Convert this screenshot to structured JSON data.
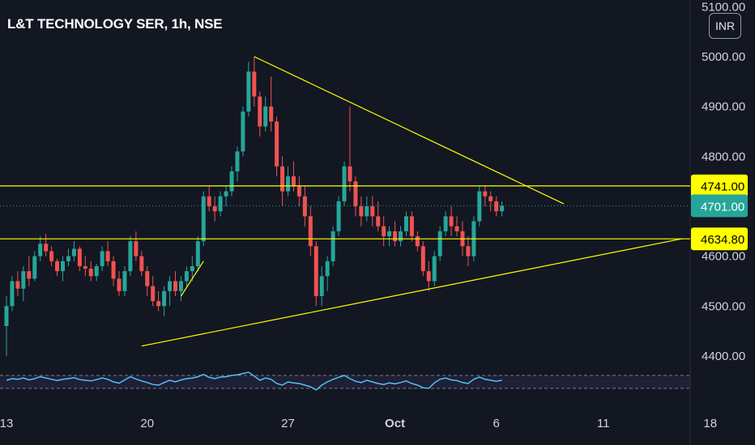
{
  "header": {
    "symbol_title": "L&T TECHNOLOGY SER, 1h, NSE",
    "currency_button": "INR"
  },
  "colors": {
    "background": "#131722",
    "up": "#26a69a",
    "down": "#ef5350",
    "drawing": "#ffff00",
    "rsi": "#4fc3f7",
    "text": "#d1d4dc"
  },
  "chart_data": {
    "type": "candlestick",
    "title": "L&T TECHNOLOGY SER, 1h, NSE",
    "currency": "INR",
    "ylim": [
      4400,
      5100
    ],
    "y_ticks": [
      4400,
      4500,
      4600,
      4700,
      4800,
      4900,
      5000,
      5100
    ],
    "y_tick_labels": [
      "4400.00",
      "4500.00",
      "4600.00",
      "4700.00",
      "4800.00",
      "4900.00",
      "5000.00",
      "5100.00"
    ],
    "x_ticks": [
      "13",
      "20",
      "27",
      "Oct",
      "6",
      "11",
      "18"
    ],
    "x_tick_positions": [
      0,
      25,
      50,
      69,
      87,
      106,
      125
    ],
    "last_price": "4701.00",
    "price_labels": [
      "4741.00",
      "4634.80"
    ],
    "horizontal_levels": [
      4741,
      4634.8
    ],
    "trendlines": [
      {
        "from": [
          44,
          5000
        ],
        "to": [
          99,
          4705
        ]
      },
      {
        "from": [
          24,
          4420
        ],
        "to": [
          120,
          4635
        ]
      },
      {
        "from": [
          31,
          4520
        ],
        "to": [
          35,
          4590
        ]
      }
    ],
    "candles": [
      [
        4460,
        4520,
        4400,
        4500
      ],
      [
        4500,
        4560,
        4490,
        4550
      ],
      [
        4550,
        4570,
        4520,
        4535
      ],
      [
        4535,
        4580,
        4510,
        4570
      ],
      [
        4570,
        4600,
        4540,
        4555
      ],
      [
        4555,
        4610,
        4550,
        4600
      ],
      [
        4600,
        4640,
        4590,
        4625
      ],
      [
        4625,
        4645,
        4600,
        4610
      ],
      [
        4610,
        4620,
        4580,
        4590
      ],
      [
        4590,
        4595,
        4560,
        4570
      ],
      [
        4570,
        4600,
        4550,
        4590
      ],
      [
        4590,
        4615,
        4580,
        4600
      ],
      [
        4600,
        4630,
        4590,
        4615
      ],
      [
        4615,
        4620,
        4570,
        4580
      ],
      [
        4580,
        4600,
        4560,
        4575
      ],
      [
        4575,
        4590,
        4550,
        4560
      ],
      [
        4560,
        4585,
        4550,
        4580
      ],
      [
        4580,
        4620,
        4570,
        4610
      ],
      [
        4610,
        4630,
        4580,
        4590
      ],
      [
        4590,
        4600,
        4540,
        4555
      ],
      [
        4555,
        4570,
        4520,
        4530
      ],
      [
        4530,
        4580,
        4520,
        4570
      ],
      [
        4570,
        4640,
        4560,
        4630
      ],
      [
        4630,
        4650,
        4590,
        4600
      ],
      [
        4600,
        4610,
        4560,
        4570
      ],
      [
        4570,
        4580,
        4520,
        4540
      ],
      [
        4540,
        4560,
        4500,
        4510
      ],
      [
        4510,
        4530,
        4490,
        4500
      ],
      [
        4500,
        4540,
        4480,
        4530
      ],
      [
        4530,
        4560,
        4500,
        4550
      ],
      [
        4550,
        4570,
        4520,
        4530
      ],
      [
        4530,
        4560,
        4510,
        4550
      ],
      [
        4550,
        4580,
        4540,
        4570
      ],
      [
        4570,
        4600,
        4550,
        4580
      ],
      [
        4580,
        4640,
        4570,
        4630
      ],
      [
        4630,
        4730,
        4620,
        4720
      ],
      [
        4720,
        4740,
        4690,
        4700
      ],
      [
        4700,
        4720,
        4670,
        4690
      ],
      [
        4690,
        4730,
        4680,
        4720
      ],
      [
        4720,
        4740,
        4700,
        4730
      ],
      [
        4730,
        4780,
        4720,
        4770
      ],
      [
        4770,
        4820,
        4750,
        4810
      ],
      [
        4810,
        4900,
        4800,
        4890
      ],
      [
        4890,
        4990,
        4880,
        4970
      ],
      [
        4970,
        5000,
        4900,
        4920
      ],
      [
        4920,
        4930,
        4840,
        4860
      ],
      [
        4860,
        4920,
        4850,
        4900
      ],
      [
        4900,
        4960,
        4850,
        4870
      ],
      [
        4870,
        4880,
        4760,
        4780
      ],
      [
        4780,
        4800,
        4700,
        4730
      ],
      [
        4730,
        4780,
        4720,
        4760
      ],
      [
        4760,
        4790,
        4730,
        4740
      ],
      [
        4740,
        4760,
        4700,
        4720
      ],
      [
        4720,
        4740,
        4660,
        4680
      ],
      [
        4680,
        4700,
        4600,
        4620
      ],
      [
        4620,
        4630,
        4500,
        4520
      ],
      [
        4520,
        4580,
        4500,
        4560
      ],
      [
        4560,
        4600,
        4530,
        4590
      ],
      [
        4590,
        4660,
        4580,
        4650
      ],
      [
        4650,
        4720,
        4640,
        4710
      ],
      [
        4710,
        4790,
        4700,
        4780
      ],
      [
        4780,
        4900,
        4730,
        4750
      ],
      [
        4750,
        4760,
        4680,
        4700
      ],
      [
        4700,
        4720,
        4660,
        4680
      ],
      [
        4680,
        4720,
        4670,
        4700
      ],
      [
        4700,
        4720,
        4660,
        4680
      ],
      [
        4680,
        4710,
        4650,
        4660
      ],
      [
        4660,
        4680,
        4620,
        4640
      ],
      [
        4640,
        4660,
        4620,
        4650
      ],
      [
        4650,
        4670,
        4620,
        4630
      ],
      [
        4630,
        4660,
        4620,
        4650
      ],
      [
        4650,
        4690,
        4640,
        4680
      ],
      [
        4680,
        4690,
        4630,
        4640
      ],
      [
        4640,
        4650,
        4610,
        4620
      ],
      [
        4620,
        4630,
        4560,
        4570
      ],
      [
        4570,
        4590,
        4530,
        4550
      ],
      [
        4550,
        4610,
        4540,
        4600
      ],
      [
        4600,
        4660,
        4590,
        4650
      ],
      [
        4650,
        4690,
        4640,
        4680
      ],
      [
        4680,
        4700,
        4640,
        4660
      ],
      [
        4660,
        4680,
        4640,
        4650
      ],
      [
        4650,
        4670,
        4600,
        4620
      ],
      [
        4620,
        4640,
        4580,
        4600
      ],
      [
        4600,
        4680,
        4590,
        4670
      ],
      [
        4670,
        4740,
        4660,
        4730
      ],
      [
        4730,
        4740,
        4700,
        4720
      ],
      [
        4720,
        4730,
        4690,
        4710
      ],
      [
        4710,
        4720,
        4680,
        4690
      ],
      [
        4690,
        4710,
        4680,
        4701
      ]
    ],
    "rsi": {
      "ylim": [
        0,
        100
      ],
      "levels": [
        30,
        70
      ],
      "values": [
        55,
        60,
        58,
        62,
        56,
        60,
        66,
        62,
        58,
        54,
        58,
        60,
        63,
        57,
        55,
        53,
        57,
        62,
        58,
        50,
        46,
        56,
        66,
        59,
        53,
        48,
        42,
        40,
        48,
        55,
        50,
        56,
        60,
        62,
        66,
        73,
        64,
        60,
        65,
        66,
        70,
        72,
        76,
        80,
        68,
        55,
        62,
        58,
        45,
        40,
        50,
        47,
        45,
        40,
        35,
        25,
        40,
        50,
        58,
        64,
        70,
        60,
        52,
        48,
        55,
        50,
        45,
        42,
        47,
        44,
        48,
        53,
        45,
        40,
        32,
        30,
        47,
        58,
        62,
        56,
        54,
        48,
        45,
        58,
        65,
        58,
        55,
        52,
        55
      ]
    }
  }
}
